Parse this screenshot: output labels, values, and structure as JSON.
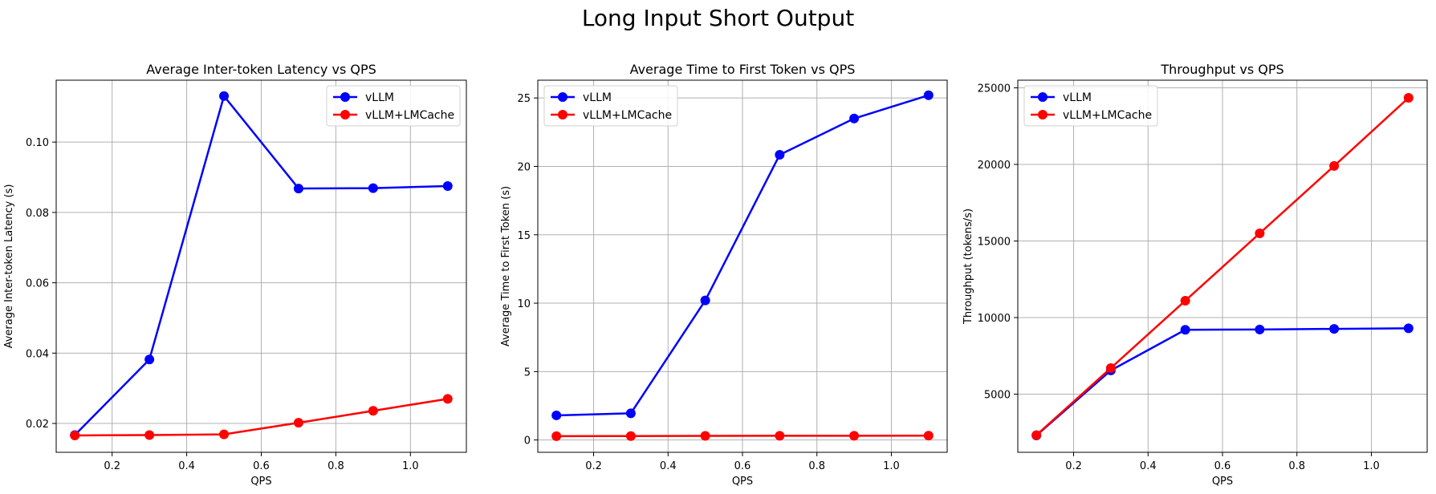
{
  "suptitle": "Long Input Short Output",
  "colors": {
    "vllm": "#0000ff",
    "lmcache": "#ff0000",
    "grid": "#b0b0b0"
  },
  "chart_data": [
    {
      "type": "line",
      "title": "Average Inter-token Latency vs QPS",
      "xlabel": "QPS",
      "ylabel": "Average Inter-token Latency (s)",
      "x": [
        0.1,
        0.3,
        0.5,
        0.7,
        0.9,
        1.1
      ],
      "xlim": [
        0.05,
        1.15
      ],
      "ylim": [
        0.0118,
        0.1176
      ],
      "xticks": [
        0.2,
        0.4,
        0.6,
        0.8,
        1.0
      ],
      "xtick_labels": [
        "0.2",
        "0.4",
        "0.6",
        "0.8",
        "1.0"
      ],
      "yticks": [
        0.02,
        0.04,
        0.06,
        0.08,
        0.1
      ],
      "ytick_labels": [
        "0.02",
        "0.04",
        "0.06",
        "0.08",
        "0.10"
      ],
      "grid": true,
      "legend_loc": "upper right",
      "series": [
        {
          "name": "vLLM",
          "color": "#0000ff",
          "values": [
            0.0167,
            0.0382,
            0.1131,
            0.0868,
            0.0869,
            0.0875
          ]
        },
        {
          "name": "vLLM+LMCache",
          "color": "#ff0000",
          "values": [
            0.0166,
            0.0167,
            0.0169,
            0.0202,
            0.0236,
            0.027
          ]
        }
      ]
    },
    {
      "type": "line",
      "title": "Average Time to First Token vs QPS",
      "xlabel": "QPS",
      "ylabel": "Average Time to First Token (s)",
      "x": [
        0.1,
        0.3,
        0.5,
        0.7,
        0.9,
        1.1
      ],
      "xlim": [
        0.05,
        1.15
      ],
      "ylim": [
        -0.9,
        26.3
      ],
      "xticks": [
        0.2,
        0.4,
        0.6,
        0.8,
        1.0
      ],
      "xtick_labels": [
        "0.2",
        "0.4",
        "0.6",
        "0.8",
        "1.0"
      ],
      "yticks": [
        0,
        5,
        10,
        15,
        20,
        25
      ],
      "ytick_labels": [
        "0",
        "5",
        "10",
        "15",
        "20",
        "25"
      ],
      "grid": true,
      "legend_loc": "upper left",
      "series": [
        {
          "name": "vLLM",
          "color": "#0000ff",
          "values": [
            1.8,
            1.95,
            10.2,
            20.85,
            23.5,
            25.2
          ]
        },
        {
          "name": "vLLM+LMCache",
          "color": "#ff0000",
          "values": [
            0.28,
            0.29,
            0.3,
            0.31,
            0.31,
            0.32
          ]
        }
      ]
    },
    {
      "type": "line",
      "title": "Throughput vs QPS",
      "xlabel": "QPS",
      "ylabel": "Throughput (tokens/s)",
      "x": [
        0.1,
        0.3,
        0.5,
        0.7,
        0.9,
        1.1
      ],
      "xlim": [
        0.05,
        1.15
      ],
      "ylim": [
        1200,
        25500
      ],
      "xticks": [
        0.2,
        0.4,
        0.6,
        0.8,
        1.0
      ],
      "xtick_labels": [
        "0.2",
        "0.4",
        "0.6",
        "0.8",
        "1.0"
      ],
      "yticks": [
        5000,
        10000,
        15000,
        20000,
        25000
      ],
      "ytick_labels": [
        "5000",
        "10000",
        "15000",
        "20000",
        "25000"
      ],
      "grid": true,
      "legend_loc": "upper left",
      "series": [
        {
          "name": "vLLM",
          "color": "#0000ff",
          "values": [
            2300,
            6550,
            9200,
            9220,
            9260,
            9300
          ]
        },
        {
          "name": "vLLM+LMCache",
          "color": "#ff0000",
          "values": [
            2320,
            6700,
            11100,
            15500,
            19900,
            24350
          ]
        }
      ]
    }
  ]
}
